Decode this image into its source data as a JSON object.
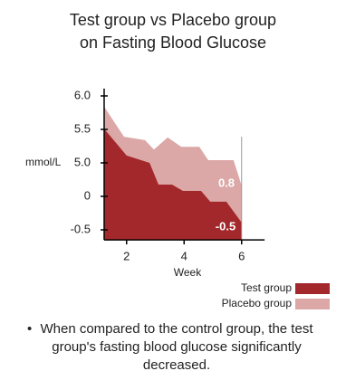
{
  "chart_data": {
    "type": "area",
    "title": "Test group vs Placebo group on Fasting Blood Glucose",
    "x_label": "Week",
    "y_label": "mmol/L",
    "xlim": [
      1.22,
      6.8
    ],
    "xticks": [
      2,
      4,
      6
    ],
    "ylim": [
      -0.65,
      6.11
    ],
    "yticks": [
      {
        "value": 6,
        "label": "6.0"
      },
      {
        "value": 5.5,
        "label": "5.5"
      },
      {
        "value": 5,
        "label": "5.0"
      },
      0,
      -0.5
    ],
    "series": [
      {
        "name": "Placebo group",
        "color": "#dba8a7",
        "x": [
          1.22,
          1.91,
          2.64,
          2.95,
          3.43,
          3.9,
          4.53,
          4.84,
          5.72,
          6.0
        ],
        "values": [
          5.84,
          5.39,
          5.34,
          5.2,
          5.38,
          5.24,
          5.24,
          5.04,
          5.04,
          1.62
        ]
      },
      {
        "name": "Test group",
        "color": "#a3282b",
        "x": [
          1.22,
          2.0,
          2.8,
          3.11,
          3.58,
          3.96,
          4.59,
          4.91,
          5.47,
          6.0
        ],
        "values": [
          5.51,
          5.11,
          5.0,
          1.76,
          1.76,
          0.81,
          0.81,
          -0.08,
          -0.08,
          -0.39
        ]
      }
    ],
    "annotations": [
      "0.8",
      "-0.5"
    ],
    "legend": "bottom-right",
    "note": "When compared to the control group, the test group's fasting blood glucose significantly decreased."
  }
}
